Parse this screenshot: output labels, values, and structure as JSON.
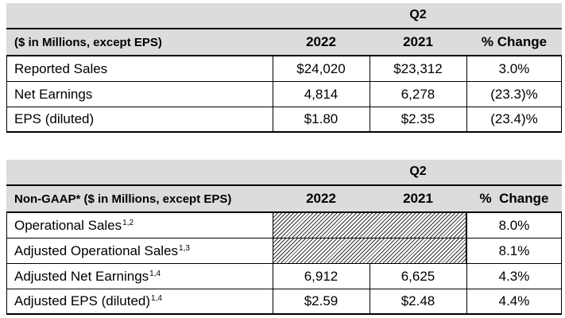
{
  "table1": {
    "period": "Q2",
    "headers": [
      "($ in Millions, except EPS)",
      "2022",
      "2021",
      "% Change"
    ],
    "rows": [
      {
        "label": "Reported Sales",
        "y2022": "$24,020",
        "y2021": "$23,312",
        "change": "3.0%"
      },
      {
        "label": "Net Earnings",
        "y2022": "4,814",
        "y2021": "6,278",
        "change": "(23.3)%"
      },
      {
        "label": "EPS (diluted)",
        "y2022": "$1.80",
        "y2021": "$2.35",
        "change": "(23.4)%"
      }
    ]
  },
  "table2": {
    "period": "Q2",
    "headers": [
      "Non-GAAP* ($ in Millions, except EPS)",
      "2022",
      "2021",
      "%  Change"
    ],
    "rows": [
      {
        "label": "Operational Sales",
        "sup": "1,2",
        "y2022": "",
        "y2021": "",
        "change": "8.0%"
      },
      {
        "label": "Adjusted Operational Sales",
        "sup": "1,3",
        "y2022": "",
        "y2021": "",
        "change": "8.1%"
      },
      {
        "label": "Adjusted Net Earnings",
        "sup": "1,4",
        "y2022": "6,912",
        "y2021": "6,625",
        "change": "4.3%"
      },
      {
        "label": "Adjusted EPS (diluted)",
        "sup": "1,4",
        "y2022": "$2.59",
        "y2021": "$2.48",
        "change": "4.4%"
      }
    ]
  }
}
